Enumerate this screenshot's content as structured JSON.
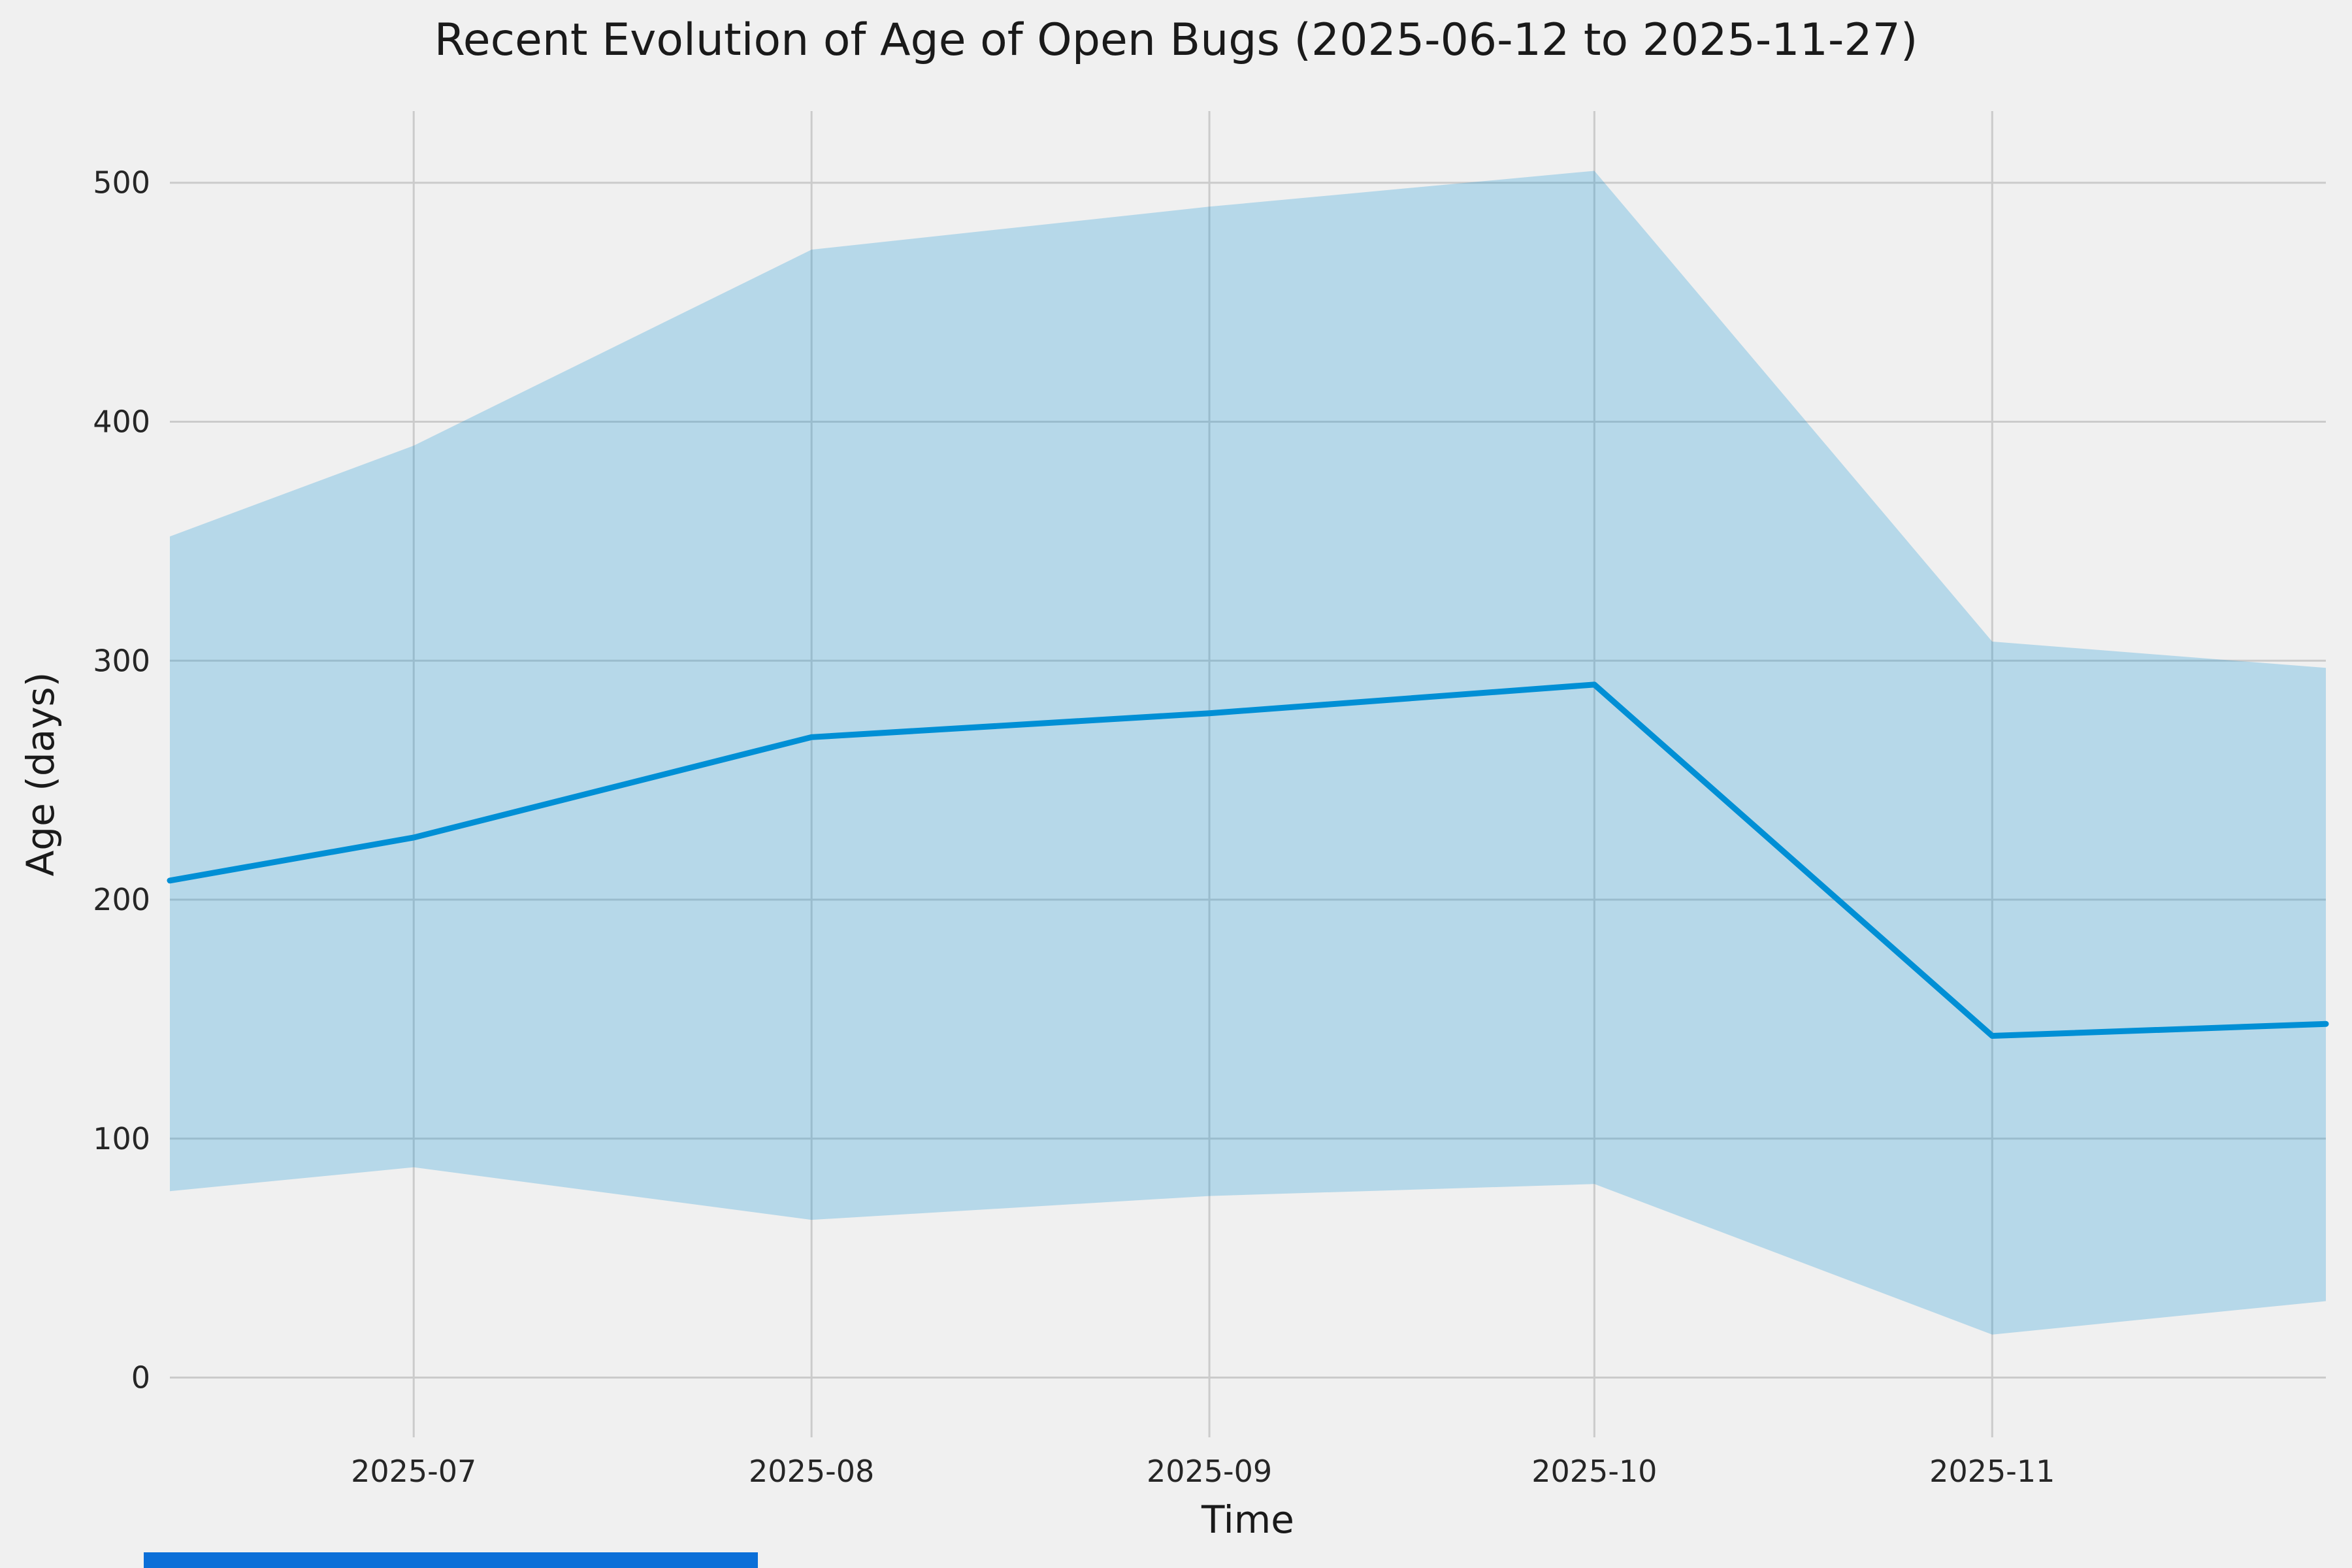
{
  "chart_data": {
    "type": "line",
    "title": "Recent Evolution of Age of Open Bugs (2025-06-12 to 2025-11-27)",
    "xlabel": "Time",
    "ylabel": "Age (days)",
    "x": [
      "2025-06-12",
      "2025-07-01",
      "2025-08-01",
      "2025-09-01",
      "2025-10-01",
      "2025-11-01",
      "2025-11-27"
    ],
    "series": [
      {
        "name": "mean-age-line",
        "values": [
          208,
          226,
          268,
          278,
          290,
          143,
          148
        ]
      },
      {
        "name": "band-upper",
        "values": [
          352,
          390,
          472,
          490,
          505,
          308,
          297
        ]
      },
      {
        "name": "band-lower",
        "values": [
          78,
          88,
          66,
          76,
          81,
          18,
          32
        ]
      }
    ],
    "xticks": [
      "2025-07-01",
      "2025-08-01",
      "2025-09-01",
      "2025-10-01",
      "2025-11-01"
    ],
    "xtick_labels": [
      "2025-07",
      "2025-08",
      "2025-09",
      "2025-10",
      "2025-11"
    ],
    "yticks": [
      0,
      100,
      200,
      300,
      400,
      500
    ],
    "ylim": [
      -25,
      530
    ],
    "grid": true,
    "legend": "none",
    "colors": {
      "line": "#008fd5",
      "band": "#008fd5",
      "band_opacity": 0.24,
      "background": "#f0f0f0",
      "grid": "#cbcbcb",
      "text": "#262626",
      "title": "#1a1a1a"
    }
  },
  "misc": {
    "bottom_strip_color": "#0b6fd8"
  }
}
